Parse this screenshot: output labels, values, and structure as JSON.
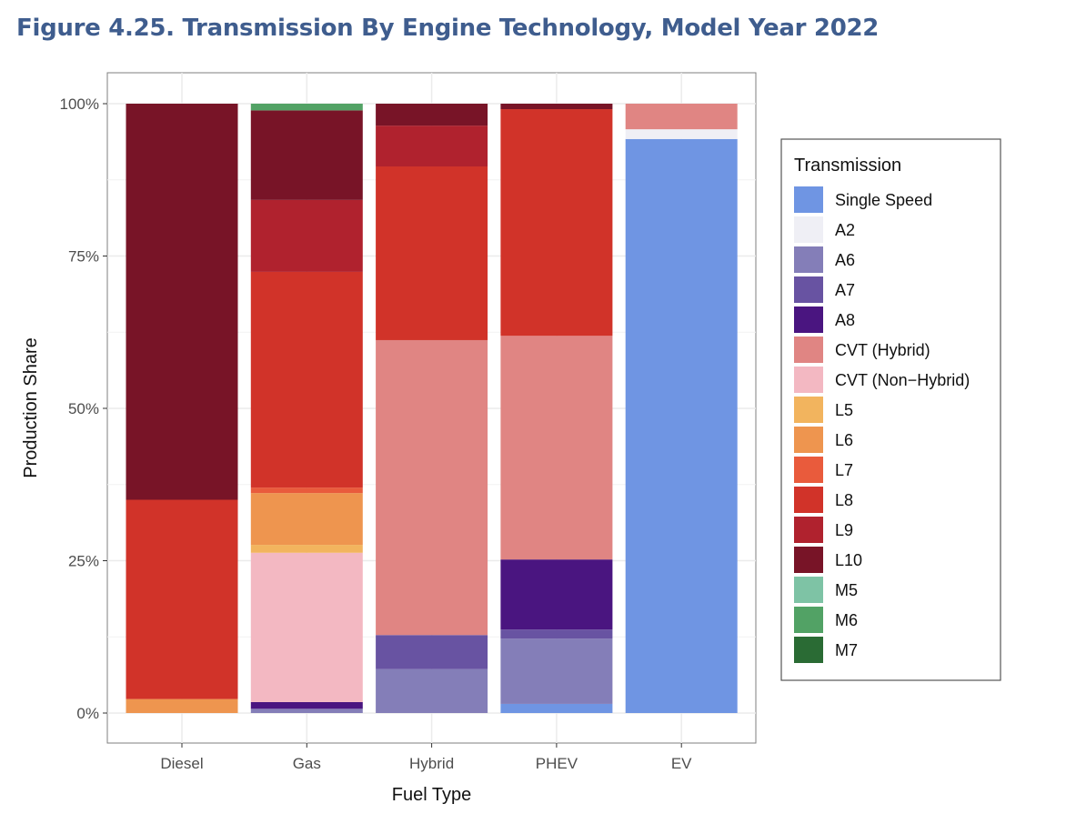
{
  "chart_data": {
    "type": "bar",
    "stacked": true,
    "title": "Figure 4.25. Transmission By Engine Technology, Model Year 2022",
    "xlabel": "Fuel Type",
    "ylabel": "Production Share",
    "ylim": [
      0,
      100
    ],
    "yticks": [
      "0%",
      "25%",
      "50%",
      "75%",
      "100%"
    ],
    "grid": true,
    "legend_title": "Transmission",
    "legend_position": "right",
    "categories": [
      "Diesel",
      "Gas",
      "Hybrid",
      "PHEV",
      "EV"
    ],
    "series": [
      {
        "name": "Single Speed",
        "color": "#6f95e3",
        "values": [
          0,
          0,
          0,
          1.5,
          94.2
        ]
      },
      {
        "name": "A2",
        "color": "#efeff5",
        "values": [
          0,
          0,
          0,
          0,
          1.6
        ]
      },
      {
        "name": "A6",
        "color": "#847eb8",
        "values": [
          0,
          0.7,
          7.2,
          10.7,
          0
        ]
      },
      {
        "name": "A7",
        "color": "#6853a2",
        "values": [
          0,
          0,
          5.6,
          1.5,
          0
        ]
      },
      {
        "name": "A8",
        "color": "#4a1580",
        "values": [
          0,
          1.1,
          0,
          11.5,
          0
        ]
      },
      {
        "name": "CVT (Hybrid)",
        "color": "#e08583",
        "values": [
          0,
          0,
          48.4,
          36.7,
          4.2
        ]
      },
      {
        "name": "CVT (Non−Hybrid)",
        "color": "#f3b8c2",
        "values": [
          0,
          24.5,
          0,
          0,
          0
        ]
      },
      {
        "name": "L5",
        "color": "#f2b45e",
        "values": [
          0,
          1.3,
          0,
          0,
          0
        ]
      },
      {
        "name": "L6",
        "color": "#ee954f",
        "values": [
          2.3,
          8.5,
          0,
          0,
          0
        ]
      },
      {
        "name": "L7",
        "color": "#e95b3c",
        "values": [
          0,
          0.9,
          0,
          0,
          0
        ]
      },
      {
        "name": "L8",
        "color": "#d13329",
        "values": [
          32.7,
          35.4,
          28.5,
          37.2,
          0
        ]
      },
      {
        "name": "L9",
        "color": "#b0222e",
        "values": [
          0,
          11.8,
          6.7,
          0,
          0
        ]
      },
      {
        "name": "L10",
        "color": "#781427",
        "values": [
          65.0,
          14.7,
          3.6,
          0.9,
          0
        ]
      },
      {
        "name": "M5",
        "color": "#7ec3a5",
        "values": [
          0,
          0,
          0,
          0,
          0
        ]
      },
      {
        "name": "M6",
        "color": "#52a265",
        "values": [
          0,
          1.1,
          0,
          0,
          0
        ]
      },
      {
        "name": "M7",
        "color": "#2a6b34",
        "values": [
          0,
          0,
          0,
          0,
          0
        ]
      }
    ]
  }
}
